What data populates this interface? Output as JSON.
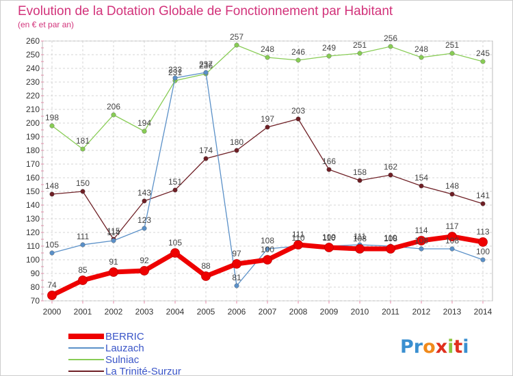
{
  "title": "Evolution de la Dotation Globale de Fonctionnement par Habitant",
  "subtitle": "(en € et par an)",
  "logo": {
    "text": "Proxiti",
    "letters": [
      "P",
      "r",
      "o",
      "x",
      "i",
      "t",
      "i"
    ],
    "colors": [
      "#3a8fd0",
      "#3a8fd0",
      "#f08a1c",
      "#e0301e",
      "#8cc63f",
      "#e0301e",
      "#3a8fd0"
    ]
  },
  "chart_data": {
    "type": "line",
    "x": [
      2000,
      2001,
      2002,
      2003,
      2004,
      2005,
      2006,
      2007,
      2008,
      2009,
      2010,
      2011,
      2012,
      2013,
      2014
    ],
    "ylim": [
      70,
      260
    ],
    "yticks": [
      70,
      80,
      90,
      100,
      110,
      120,
      130,
      140,
      150,
      160,
      170,
      180,
      190,
      200,
      210,
      220,
      230,
      240,
      250,
      260
    ],
    "grid": true,
    "legend_position": "bottom-left",
    "series": [
      {
        "name": "Sulniac",
        "color": "#88cc55",
        "values": [
          198,
          181,
          206,
          194,
          231,
          236,
          257,
          248,
          246,
          249,
          251,
          256,
          248,
          251,
          245
        ],
        "labels": [
          "198",
          "181",
          "206",
          "194",
          "231",
          "236",
          "257",
          "248",
          "246",
          "249",
          "251",
          "256",
          "248",
          "251",
          "245"
        ]
      },
      {
        "name": "La Trinité-Surzur",
        "color": "#6e1f25",
        "values": [
          148,
          150,
          115,
          143,
          151,
          174,
          180,
          197,
          203,
          166,
          158,
          162,
          154,
          148,
          141
        ],
        "labels": [
          "148",
          "150",
          "115",
          "143",
          "151",
          "174",
          "180",
          "197",
          "203",
          "166",
          "158",
          "162",
          "154",
          "148",
          "141"
        ]
      },
      {
        "name": "Lauzach",
        "color": "#5a90c8",
        "values": [
          105,
          111,
          114,
          123,
          233,
          237,
          81,
          108,
          110,
          110,
          111,
          110,
          108,
          108,
          100
        ],
        "labels": [
          "105",
          "111",
          "114",
          "123",
          "233",
          "237",
          "81",
          "108",
          "110",
          "110",
          "111",
          "110",
          "108",
          "108",
          "100"
        ]
      },
      {
        "name": "BERRIC",
        "color": "#ee0000",
        "values": [
          74,
          85,
          91,
          92,
          105,
          88,
          97,
          100,
          111,
          109,
          108,
          108,
          114,
          117,
          113
        ],
        "labels": [
          "74",
          "85",
          "91",
          "92",
          "105",
          "88",
          "97",
          "100",
          "111",
          "109",
          "108",
          "108",
          "114",
          "117",
          "113"
        ]
      }
    ]
  }
}
